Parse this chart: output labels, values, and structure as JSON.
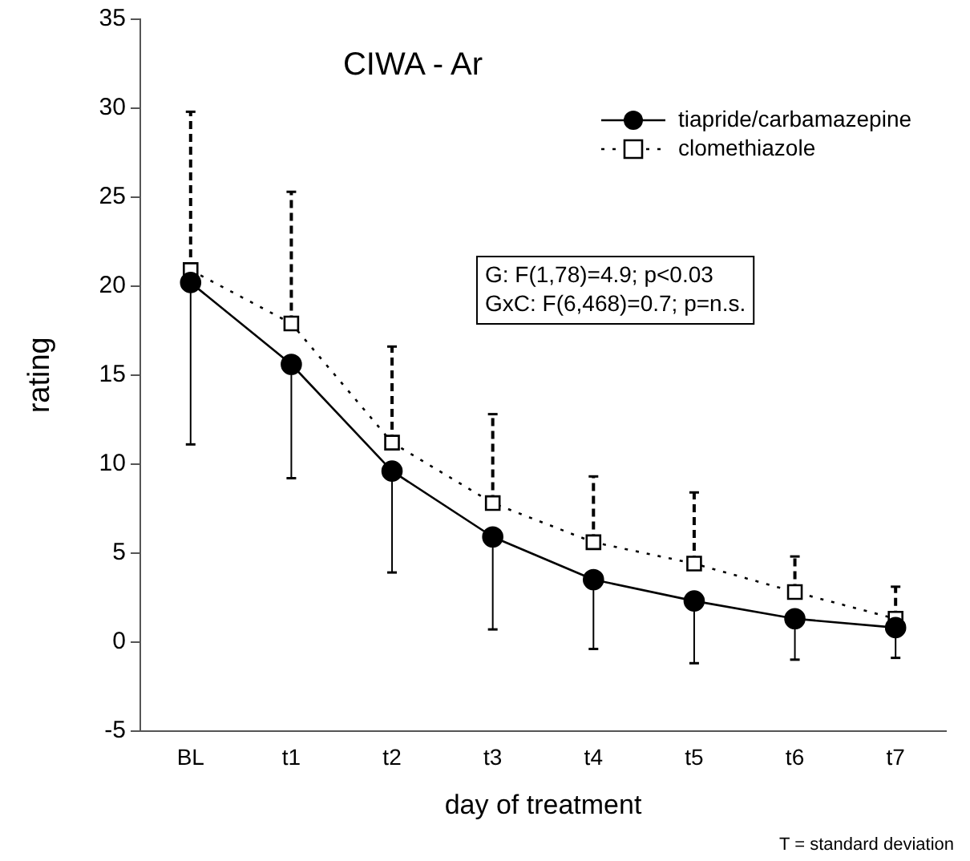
{
  "chart_data": {
    "type": "line",
    "title": "CIWA - Ar",
    "xlabel": "day of treatment",
    "ylabel": "rating",
    "categories": [
      "BL",
      "t1",
      "t2",
      "t3",
      "t4",
      "t5",
      "t6",
      "t7"
    ],
    "series": [
      {
        "name": "tiapride/carbamazepine",
        "color": "#000000",
        "marker": "circle",
        "line_style": "solid",
        "values": [
          20.2,
          15.6,
          9.6,
          5.9,
          3.5,
          2.3,
          1.3,
          0.8
        ],
        "errors": [
          [
            11.1,
            20.2
          ],
          [
            9.2,
            15.6
          ],
          [
            3.9,
            9.6
          ],
          [
            0.7,
            5.9
          ],
          [
            -0.4,
            3.5
          ],
          [
            -1.2,
            2.3
          ],
          [
            -1.0,
            1.3
          ],
          [
            -0.9,
            0.8
          ]
        ]
      },
      {
        "name": "clomethiazole",
        "color": "#000000",
        "marker": "square",
        "line_style": "dotted",
        "values": [
          20.9,
          17.9,
          11.2,
          7.8,
          5.6,
          4.4,
          2.8,
          1.3
        ],
        "errors": [
          [
            20.9,
            29.8
          ],
          [
            17.9,
            25.3
          ],
          [
            11.2,
            16.6
          ],
          [
            7.8,
            12.8
          ],
          [
            5.6,
            9.3
          ],
          [
            4.4,
            8.4
          ],
          [
            2.8,
            4.8
          ],
          [
            1.3,
            3.1
          ]
        ]
      }
    ],
    "ylim": [
      -5,
      35
    ],
    "yticks": [
      -5,
      0,
      5,
      10,
      15,
      20,
      25,
      30,
      35
    ],
    "grid": false,
    "legend": "top right",
    "annotations": [
      "G: F(1,78)=4.9; p<0.03\nGxC: F(6,468)=0.7; p=n.s.",
      "T = standard deviation"
    ]
  }
}
